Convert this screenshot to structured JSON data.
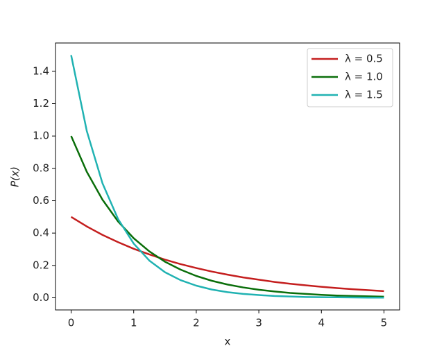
{
  "chart_data": {
    "type": "line",
    "x_label": "x",
    "y_label": "P(x)",
    "x": [
      0,
      0.25,
      0.5,
      0.75,
      1,
      1.25,
      1.5,
      1.75,
      2,
      2.25,
      2.5,
      2.75,
      3,
      3.25,
      3.5,
      3.75,
      4,
      4.25,
      4.5,
      4.75,
      5
    ],
    "series": [
      {
        "name": "λ = 0.5",
        "color": "#c41e1e",
        "values": [
          0.5,
          0.441,
          0.389,
          0.344,
          0.303,
          0.268,
          0.236,
          0.208,
          0.184,
          0.162,
          0.143,
          0.126,
          0.112,
          0.098,
          0.087,
          0.077,
          0.068,
          0.06,
          0.053,
          0.047,
          0.041
        ]
      },
      {
        "name": "λ = 1.0",
        "color": "#0a6e0a",
        "values": [
          1,
          0.779,
          0.607,
          0.472,
          0.368,
          0.287,
          0.223,
          0.174,
          0.135,
          0.105,
          0.082,
          0.064,
          0.05,
          0.039,
          0.03,
          0.024,
          0.018,
          0.014,
          0.011,
          0.009,
          0.007
        ]
      },
      {
        "name": "λ = 1.5",
        "color": "#20b2b2",
        "values": [
          1.5,
          1.031,
          0.709,
          0.487,
          0.335,
          0.23,
          0.158,
          0.109,
          0.075,
          0.051,
          0.035,
          0.024,
          0.017,
          0.011,
          0.008,
          0.005,
          0.004,
          0.003,
          0.002,
          0.001,
          0.001
        ]
      }
    ],
    "xlim": [
      -0.25,
      5.25
    ],
    "ylim": [
      -0.075,
      1.575
    ],
    "xticks": [
      0,
      1,
      2,
      3,
      4,
      5
    ],
    "yticks": [
      {
        "value": 0,
        "label": "0.0"
      },
      0.2,
      0.4,
      0.6,
      0.8,
      {
        "value": 1,
        "label": "1.0"
      },
      1.2,
      1.4
    ],
    "legend": "upper right",
    "grid": false
  }
}
